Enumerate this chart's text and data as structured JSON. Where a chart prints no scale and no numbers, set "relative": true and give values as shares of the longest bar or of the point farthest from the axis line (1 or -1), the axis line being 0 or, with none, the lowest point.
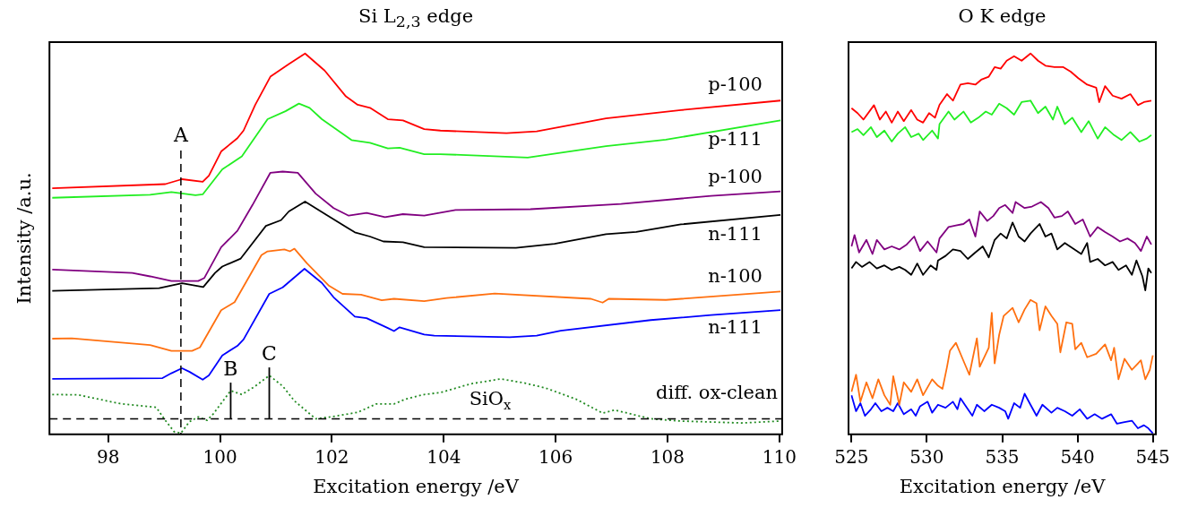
{
  "chart_data": [
    {
      "type": "line",
      "title": "Si L$_{2,3}$ edge",
      "xlabel": "Excitation energy /eV",
      "ylabel": "Intensity /a.u.",
      "relative": true,
      "marker": "none",
      "xlim": [
        96.95,
        110.05
      ],
      "xticks": [
        98,
        100,
        102,
        104,
        106,
        108,
        110
      ],
      "series": [
        {
          "name": "p-100",
          "color": "#ff0000",
          "x": [
            97.0,
            99.02,
            99.32,
            99.69,
            99.8,
            100.02,
            100.31,
            100.42,
            100.63,
            100.9,
            101.23,
            101.52,
            101.87,
            102.25,
            102.46,
            102.68,
            103.0,
            103.27,
            103.65,
            103.94,
            105.12,
            105.66,
            106.9,
            108.24,
            110.02
          ],
          "values": [
            0.645,
            0.656,
            0.669,
            0.662,
            0.678,
            0.742,
            0.777,
            0.797,
            0.865,
            0.939,
            0.972,
            1.0,
            0.955,
            0.887,
            0.865,
            0.857,
            0.827,
            0.824,
            0.801,
            0.797,
            0.79,
            0.795,
            0.829,
            0.851,
            0.876
          ]
        },
        {
          "name": "p-111",
          "color": "#22ee22",
          "x": [
            97.0,
            98.75,
            99.13,
            99.56,
            99.69,
            100.04,
            100.39,
            100.85,
            101.17,
            101.41,
            101.6,
            101.82,
            102.35,
            102.68,
            103.0,
            103.21,
            103.65,
            103.94,
            105.5,
            106.9,
            107.97,
            110.02
          ],
          "values": [
            0.62,
            0.628,
            0.635,
            0.627,
            0.629,
            0.695,
            0.729,
            0.827,
            0.848,
            0.868,
            0.857,
            0.827,
            0.772,
            0.765,
            0.75,
            0.752,
            0.735,
            0.735,
            0.726,
            0.756,
            0.773,
            0.824
          ]
        },
        {
          "name": "p-100",
          "color": "#800080",
          "x": [
            97.0,
            98.43,
            98.75,
            99.13,
            99.61,
            99.72,
            100.02,
            100.31,
            100.58,
            100.9,
            101.12,
            101.39,
            101.71,
            102.03,
            102.3,
            102.62,
            102.95,
            103.27,
            103.65,
            104.21,
            105.55,
            107.17,
            108.78,
            110.02
          ],
          "values": [
            0.431,
            0.422,
            0.413,
            0.401,
            0.401,
            0.409,
            0.49,
            0.533,
            0.601,
            0.686,
            0.689,
            0.686,
            0.631,
            0.593,
            0.573,
            0.58,
            0.569,
            0.577,
            0.573,
            0.588,
            0.59,
            0.604,
            0.625,
            0.637
          ]
        },
        {
          "name": "n-111",
          "color": "#000000",
          "x": [
            97.0,
            98.91,
            99.32,
            99.7,
            99.91,
            100.04,
            100.37,
            100.82,
            101.09,
            101.23,
            101.52,
            101.9,
            102.41,
            102.68,
            102.92,
            103.27,
            103.65,
            105.29,
            105.98,
            106.9,
            107.44,
            108.24,
            110.02
          ],
          "values": [
            0.375,
            0.382,
            0.395,
            0.385,
            0.422,
            0.439,
            0.46,
            0.546,
            0.561,
            0.584,
            0.61,
            0.575,
            0.529,
            0.518,
            0.505,
            0.503,
            0.49,
            0.488,
            0.499,
            0.524,
            0.53,
            0.55,
            0.575
          ]
        },
        {
          "name": "n-100",
          "color": "#ff7010",
          "x": [
            97.0,
            97.35,
            98.75,
            99.13,
            99.5,
            99.64,
            100.02,
            100.26,
            100.74,
            100.85,
            101.15,
            101.25,
            101.33,
            101.55,
            101.95,
            102.19,
            102.52,
            102.89,
            103.11,
            103.65,
            104.05,
            104.91,
            106.63,
            106.84,
            106.95,
            107.97,
            110.02
          ],
          "values": [
            0.249,
            0.25,
            0.232,
            0.217,
            0.217,
            0.226,
            0.324,
            0.345,
            0.469,
            0.479,
            0.484,
            0.479,
            0.486,
            0.448,
            0.388,
            0.367,
            0.365,
            0.35,
            0.354,
            0.348,
            0.356,
            0.368,
            0.354,
            0.344,
            0.354,
            0.351,
            0.373
          ]
        },
        {
          "name": "n-111",
          "color": "#0000ff",
          "x": [
            97.0,
            98.97,
            99.13,
            99.32,
            99.45,
            99.69,
            99.8,
            100.04,
            100.31,
            100.42,
            100.88,
            101.12,
            101.51,
            101.82,
            102.03,
            102.41,
            102.62,
            103.0,
            103.11,
            103.21,
            103.65,
            103.83,
            105.18,
            105.66,
            106.09,
            107.7,
            108.78,
            110.02
          ],
          "values": [
            0.143,
            0.145,
            0.158,
            0.171,
            0.162,
            0.141,
            0.152,
            0.205,
            0.23,
            0.247,
            0.367,
            0.384,
            0.433,
            0.396,
            0.358,
            0.307,
            0.303,
            0.277,
            0.269,
            0.279,
            0.26,
            0.257,
            0.253,
            0.257,
            0.27,
            0.298,
            0.311,
            0.324
          ]
        },
        {
          "name": "diff. ox-clean",
          "color": "#228b22",
          "line_style": "dotted",
          "x": [
            97.0,
            97.46,
            98.21,
            98.86,
            99.02,
            99.18,
            99.3,
            99.45,
            99.61,
            99.77,
            99.88,
            100.19,
            100.39,
            100.63,
            100.88,
            101.12,
            101.33,
            101.71,
            101.98,
            102.46,
            102.79,
            103.11,
            103.32,
            103.65,
            103.94,
            104.48,
            105.02,
            105.45,
            105.82,
            106.36,
            106.84,
            107.06,
            107.7,
            108.24,
            109.32,
            110.02
          ],
          "values": [
            0.102,
            0.101,
            0.078,
            0.068,
            0.034,
            0.004,
            0,
            0.03,
            0.043,
            0.034,
            0.051,
            0.112,
            0.102,
            0.124,
            0.152,
            0.124,
            0.085,
            0.038,
            0.043,
            0.055,
            0.077,
            0.077,
            0.09,
            0.102,
            0.107,
            0.13,
            0.143,
            0.132,
            0.119,
            0.09,
            0.053,
            0.061,
            0.038,
            0.032,
            0.027,
            0.032
          ]
        }
      ],
      "ref_lines": [
        {
          "axis": "x",
          "value": 99.3,
          "label": "A",
          "line_style": "dashed",
          "color": "#000000"
        },
        {
          "axis": "y",
          "value": 0.038,
          "line_style": "dashed",
          "color": "#000000"
        }
      ],
      "annotations": [
        {
          "text": "B",
          "x": 100.19,
          "y": 0.112
        },
        {
          "text": "C",
          "x": 100.88,
          "y": 0.152
        },
        {
          "text": "SiO$_{x}$",
          "x": 105.02,
          "y": 0.143
        }
      ]
    },
    {
      "type": "line",
      "title": "O K edge",
      "xlabel": "Excitation energy /eV",
      "relative": true,
      "marker": "none",
      "xlim": [
        524.8,
        545.2
      ],
      "xticks": [
        525,
        530,
        535,
        540,
        545
      ],
      "series": [
        {
          "color": "#ff0000",
          "x": [
            525.0,
            525.4,
            525.79,
            526.49,
            526.88,
            527.28,
            527.67,
            528.07,
            528.47,
            528.96,
            529.36,
            529.75,
            530.15,
            530.54,
            530.84,
            531.34,
            531.73,
            532.23,
            532.72,
            533.22,
            533.61,
            534.11,
            534.5,
            534.9,
            535.3,
            535.79,
            536.29,
            536.88,
            537.38,
            537.87,
            538.47,
            539.06,
            539.55,
            540.05,
            540.64,
            541.24,
            541.44,
            541.83,
            542.33,
            542.92,
            543.51,
            544.01,
            544.41,
            544.9
          ],
          "values": [
            0.856,
            0.843,
            0.826,
            0.864,
            0.826,
            0.847,
            0.818,
            0.847,
            0.822,
            0.851,
            0.826,
            0.818,
            0.843,
            0.831,
            0.865,
            0.893,
            0.876,
            0.918,
            0.922,
            0.918,
            0.931,
            0.939,
            0.964,
            0.96,
            0.981,
            0.993,
            0.981,
            1.0,
            0.981,
            0.968,
            0.964,
            0.964,
            0.952,
            0.935,
            0.918,
            0.91,
            0.872,
            0.914,
            0.889,
            0.881,
            0.893,
            0.864,
            0.872,
            0.876
          ]
        },
        {
          "color": "#22ee22",
          "x": [
            525.0,
            525.4,
            525.79,
            526.29,
            526.68,
            527.18,
            527.67,
            528.07,
            528.56,
            528.96,
            529.46,
            529.75,
            530.35,
            530.74,
            530.84,
            531.44,
            531.83,
            532.43,
            532.92,
            533.42,
            533.91,
            534.31,
            534.8,
            535.3,
            535.79,
            536.29,
            536.88,
            537.38,
            537.87,
            538.37,
            538.66,
            539.16,
            539.65,
            540.25,
            540.74,
            541.34,
            541.83,
            542.43,
            542.92,
            543.51,
            544.11,
            544.6,
            544.9
          ],
          "values": [
            0.793,
            0.801,
            0.785,
            0.806,
            0.78,
            0.797,
            0.768,
            0.789,
            0.806,
            0.78,
            0.789,
            0.772,
            0.797,
            0.776,
            0.814,
            0.847,
            0.826,
            0.847,
            0.818,
            0.831,
            0.847,
            0.839,
            0.868,
            0.856,
            0.839,
            0.872,
            0.876,
            0.843,
            0.86,
            0.826,
            0.86,
            0.814,
            0.831,
            0.793,
            0.822,
            0.776,
            0.806,
            0.785,
            0.772,
            0.793,
            0.768,
            0.776,
            0.785
          ]
        },
        {
          "color": "#800080",
          "x": [
            525.0,
            525.2,
            525.5,
            525.99,
            526.39,
            526.68,
            527.18,
            527.67,
            528.17,
            528.66,
            529.16,
            529.55,
            530.05,
            530.64,
            530.84,
            531.44,
            531.93,
            532.43,
            532.82,
            533.22,
            533.51,
            534.01,
            534.41,
            534.8,
            535.2,
            535.69,
            535.89,
            536.49,
            536.98,
            537.57,
            538.07,
            538.47,
            538.96,
            539.36,
            539.85,
            540.35,
            540.84,
            541.34,
            541.83,
            542.33,
            542.82,
            543.32,
            543.81,
            544.21,
            544.6,
            544.9
          ],
          "values": [
            0.492,
            0.522,
            0.476,
            0.509,
            0.472,
            0.509,
            0.484,
            0.492,
            0.484,
            0.497,
            0.518,
            0.48,
            0.505,
            0.476,
            0.513,
            0.543,
            0.547,
            0.551,
            0.563,
            0.518,
            0.584,
            0.559,
            0.572,
            0.593,
            0.601,
            0.58,
            0.609,
            0.593,
            0.597,
            0.609,
            0.593,
            0.568,
            0.572,
            0.584,
            0.551,
            0.563,
            0.518,
            0.543,
            0.53,
            0.518,
            0.505,
            0.513,
            0.501,
            0.48,
            0.518,
            0.497
          ]
        },
        {
          "color": "#000000",
          "x": [
            525.0,
            525.3,
            525.69,
            526.19,
            526.68,
            527.18,
            527.67,
            528.17,
            528.56,
            528.96,
            529.36,
            529.75,
            530.25,
            530.64,
            530.74,
            531.24,
            531.73,
            532.23,
            532.72,
            533.22,
            533.71,
            534.11,
            534.5,
            534.9,
            535.3,
            535.69,
            536.09,
            536.49,
            536.88,
            537.48,
            537.87,
            538.27,
            538.66,
            539.16,
            539.65,
            540.25,
            540.64,
            540.84,
            541.34,
            541.83,
            542.33,
            542.72,
            543.22,
            543.61,
            543.91,
            544.31,
            544.5,
            544.7,
            544.9
          ],
          "values": [
            0.434,
            0.451,
            0.438,
            0.451,
            0.434,
            0.442,
            0.43,
            0.438,
            0.43,
            0.417,
            0.447,
            0.417,
            0.442,
            0.43,
            0.455,
            0.467,
            0.484,
            0.48,
            0.459,
            0.476,
            0.492,
            0.463,
            0.509,
            0.526,
            0.513,
            0.555,
            0.518,
            0.505,
            0.526,
            0.551,
            0.518,
            0.526,
            0.484,
            0.501,
            0.488,
            0.472,
            0.501,
            0.451,
            0.459,
            0.442,
            0.451,
            0.43,
            0.442,
            0.417,
            0.455,
            0.413,
            0.376,
            0.434,
            0.422
          ]
        },
        {
          "color": "#ff7010",
          "x": [
            525.0,
            525.3,
            525.59,
            525.99,
            526.39,
            526.78,
            527.18,
            527.57,
            527.77,
            528.17,
            528.47,
            528.96,
            529.36,
            529.75,
            530.35,
            530.74,
            531.04,
            531.34,
            531.53,
            531.93,
            532.33,
            532.82,
            533.32,
            533.51,
            534.11,
            534.31,
            534.5,
            534.8,
            535.1,
            535.69,
            536.09,
            536.49,
            536.88,
            537.28,
            537.48,
            537.87,
            538.27,
            538.66,
            538.86,
            539.26,
            539.65,
            539.85,
            540.25,
            540.64,
            541.24,
            541.83,
            542.23,
            542.43,
            542.72,
            543.12,
            543.61,
            544.21,
            544.5,
            544.8,
            545.0
          ],
          "values": [
            0.109,
            0.154,
            0.083,
            0.134,
            0.092,
            0.142,
            0.1,
            0.075,
            0.15,
            0.075,
            0.134,
            0.109,
            0.142,
            0.1,
            0.142,
            0.125,
            0.117,
            0.175,
            0.217,
            0.238,
            0.2,
            0.154,
            0.25,
            0.175,
            0.225,
            0.317,
            0.184,
            0.259,
            0.309,
            0.33,
            0.292,
            0.326,
            0.351,
            0.342,
            0.271,
            0.334,
            0.309,
            0.288,
            0.213,
            0.292,
            0.288,
            0.221,
            0.238,
            0.2,
            0.209,
            0.234,
            0.192,
            0.225,
            0.142,
            0.196,
            0.167,
            0.192,
            0.142,
            0.167,
            0.205
          ]
        },
        {
          "color": "#0000ff",
          "x": [
            525.0,
            525.3,
            525.59,
            525.89,
            526.29,
            526.58,
            526.98,
            527.38,
            527.77,
            528.07,
            528.47,
            528.96,
            529.26,
            529.55,
            530.05,
            530.35,
            530.74,
            531.24,
            531.73,
            532.03,
            532.23,
            532.52,
            533.02,
            533.32,
            533.81,
            534.31,
            534.8,
            535.2,
            535.4,
            535.79,
            536.19,
            536.49,
            536.88,
            537.28,
            537.67,
            538.27,
            538.66,
            539.16,
            539.65,
            540.15,
            540.64,
            541.14,
            541.63,
            542.23,
            542.62,
            543.12,
            543.61,
            544.01,
            544.41,
            544.7,
            545.0
          ],
          "values": [
            0.1,
            0.058,
            0.079,
            0.046,
            0.063,
            0.079,
            0.058,
            0.067,
            0.058,
            0.079,
            0.05,
            0.063,
            0.046,
            0.071,
            0.083,
            0.054,
            0.075,
            0.067,
            0.083,
            0.063,
            0.092,
            0.075,
            0.046,
            0.075,
            0.058,
            0.075,
            0.067,
            0.058,
            0.038,
            0.079,
            0.067,
            0.104,
            0.075,
            0.046,
            0.075,
            0.054,
            0.067,
            0.058,
            0.046,
            0.063,
            0.038,
            0.05,
            0.038,
            0.05,
            0.025,
            0.029,
            0.033,
            0.013,
            0.021,
            0.013,
            0
          ]
        }
      ]
    }
  ]
}
